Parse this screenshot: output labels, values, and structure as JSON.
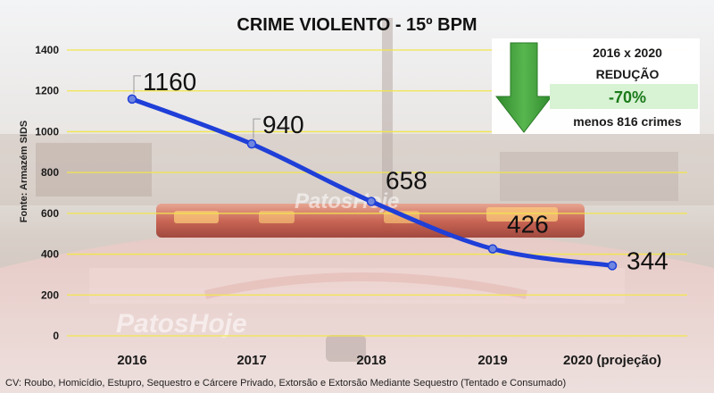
{
  "chart_data": {
    "type": "line",
    "title": "CRIME VIOLENTO - 15º BPM",
    "ylabel": "Fonte: Armazém SIDS",
    "categories": [
      "2016",
      "2017",
      "2018",
      "2019",
      "2020 (projeção)"
    ],
    "values": [
      1160,
      940,
      658,
      426,
      344
    ],
    "data_labels": [
      "1160",
      "940",
      "658",
      "426",
      "344"
    ],
    "yticks": [
      "0",
      "200",
      "400",
      "600",
      "800",
      "1000",
      "1200",
      "1400"
    ],
    "ylim": [
      0,
      1400
    ],
    "grid": true,
    "line_color": "#1f3fd8",
    "gridline_color": "#f2e64a"
  },
  "info_box": {
    "heading": "2016 x 2020",
    "subheading": "REDUÇÃO",
    "percent": "-70%",
    "detail": "menos 816 crimes",
    "arrow_color": "#3fa63a"
  },
  "footnote": "CV: Roubo, Homicídio, Estupro, Sequestro e Cárcere Privado, Extorsão e Extorsão Mediante Sequestro (Tentado e Consumado)",
  "watermark": "PatosHoje"
}
